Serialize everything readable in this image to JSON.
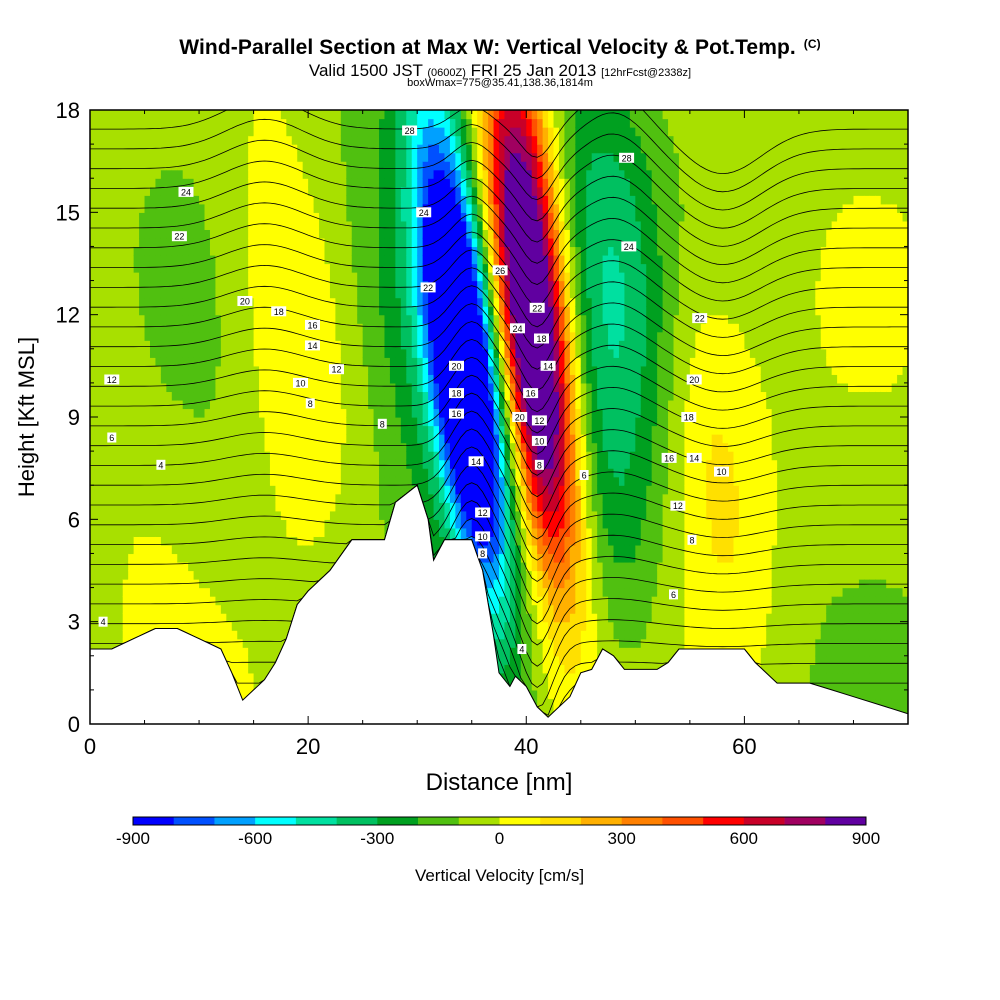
{
  "title": {
    "main": "Wind-Parallel Section at Max W: Vertical Velocity & Pot.Temp.",
    "copyright": "(C)",
    "valid_prefix": "Valid 1500 JST",
    "valid_utc": "(0600Z)",
    "valid_date": "FRI 25 Jan 2013",
    "forecast": "[12hrFcst@2338z]",
    "box_info": "boxWmax=775@35.41,138.36,1814m"
  },
  "chart_data": {
    "type": "heatmap",
    "xlabel": "Distance [nm]",
    "ylabel": "Height [Kft MSL]",
    "xlim": [
      0,
      75
    ],
    "ylim": [
      0,
      18
    ],
    "x_ticks": [
      0,
      20,
      40,
      60
    ],
    "y_ticks": [
      0,
      3,
      6,
      9,
      12,
      15,
      18
    ],
    "colorbar": {
      "label": "Vertical Velocity [cm/s]",
      "tick_labels": [
        "-900",
        "-600",
        "-300",
        "0",
        "300",
        "600",
        "900"
      ],
      "colors": [
        "#0000ff",
        "#0050ff",
        "#00a0ff",
        "#00ffff",
        "#00e0a0",
        "#00c060",
        "#00a020",
        "#50c010",
        "#a8e000",
        "#ffff00",
        "#ffe000",
        "#ffb000",
        "#ff8000",
        "#ff5000",
        "#ff0000",
        "#c80028",
        "#a00060",
        "#6000a0"
      ]
    },
    "terrain_kft": [
      [
        0,
        2.2
      ],
      [
        2,
        2.2
      ],
      [
        4,
        2.5
      ],
      [
        6,
        2.8
      ],
      [
        8,
        2.8
      ],
      [
        10,
        2.5
      ],
      [
        12,
        2.2
      ],
      [
        13,
        1.5
      ],
      [
        14,
        0.7
      ],
      [
        15,
        1.0
      ],
      [
        16,
        1.3
      ],
      [
        17,
        1.8
      ],
      [
        18,
        2.5
      ],
      [
        19,
        3.5
      ],
      [
        20,
        3.9
      ],
      [
        22,
        4.5
      ],
      [
        24,
        5.4
      ],
      [
        27,
        5.4
      ],
      [
        28,
        6.5
      ],
      [
        30,
        7.0
      ],
      [
        31,
        6.0
      ],
      [
        31.5,
        4.8
      ],
      [
        32.5,
        5.4
      ],
      [
        35,
        5.4
      ],
      [
        36,
        4.5
      ],
      [
        37,
        2.6
      ],
      [
        37.5,
        1.5
      ],
      [
        38.5,
        1.1
      ],
      [
        39,
        1.4
      ],
      [
        40,
        1.1
      ],
      [
        41,
        0.5
      ],
      [
        42,
        0.2
      ],
      [
        43,
        0.5
      ],
      [
        44,
        0.8
      ],
      [
        45,
        1.5
      ],
      [
        46,
        1.6
      ],
      [
        47,
        2.2
      ],
      [
        48,
        2.0
      ],
      [
        49,
        1.6
      ],
      [
        52,
        1.6
      ],
      [
        53,
        1.8
      ],
      [
        54,
        2.2
      ],
      [
        57,
        2.2
      ],
      [
        60,
        2.2
      ],
      [
        61,
        1.8
      ],
      [
        63,
        1.2
      ],
      [
        66,
        1.2
      ],
      [
        68,
        1.0
      ],
      [
        70,
        0.8
      ],
      [
        73,
        0.5
      ],
      [
        75,
        0.3
      ]
    ],
    "vertical_velocity_features_cm_s": [
      {
        "x": 35,
        "z": 9.5,
        "w": -900
      },
      {
        "x": 33,
        "z": 13,
        "w": -600
      },
      {
        "x": 41,
        "z": 10,
        "w": 950
      },
      {
        "x": 40,
        "z": 15,
        "w": 650
      },
      {
        "x": 48,
        "z": 14,
        "w": -250
      },
      {
        "x": 47,
        "z": 7,
        "w": -200
      },
      {
        "x": 29,
        "z": 12,
        "w": -250
      },
      {
        "x": 5,
        "z": 5,
        "w": 50
      },
      {
        "x": 18,
        "z": 12,
        "w": 180
      },
      {
        "x": 57,
        "z": 8,
        "w": 200
      }
    ],
    "theta_contour_labels": [
      {
        "text": "4",
        "x": 1.2,
        "z": 3.0
      },
      {
        "text": "4",
        "x": 6.5,
        "z": 7.6
      },
      {
        "text": "6",
        "x": 2.0,
        "z": 8.4
      },
      {
        "text": "12",
        "x": 2.0,
        "z": 10.1
      },
      {
        "text": "22",
        "x": 8.2,
        "z": 14.3
      },
      {
        "text": "24",
        "x": 8.8,
        "z": 15.6
      },
      {
        "text": "20",
        "x": 14.2,
        "z": 12.4
      },
      {
        "text": "18",
        "x": 17.3,
        "z": 12.1
      },
      {
        "text": "16",
        "x": 20.4,
        "z": 11.7
      },
      {
        "text": "14",
        "x": 20.4,
        "z": 11.1
      },
      {
        "text": "10",
        "x": 19.3,
        "z": 10.0
      },
      {
        "text": "8",
        "x": 20.2,
        "z": 9.4
      },
      {
        "text": "12",
        "x": 22.6,
        "z": 10.4
      },
      {
        "text": "8",
        "x": 26.8,
        "z": 8.8
      },
      {
        "text": "28",
        "x": 29.3,
        "z": 17.4
      },
      {
        "text": "24",
        "x": 30.6,
        "z": 15.0
      },
      {
        "text": "22",
        "x": 31.0,
        "z": 12.8
      },
      {
        "text": "20",
        "x": 33.6,
        "z": 10.5
      },
      {
        "text": "18",
        "x": 33.6,
        "z": 9.7
      },
      {
        "text": "16",
        "x": 33.6,
        "z": 9.1
      },
      {
        "text": "14",
        "x": 35.4,
        "z": 7.7
      },
      {
        "text": "12",
        "x": 36.0,
        "z": 6.2
      },
      {
        "text": "10",
        "x": 36.0,
        "z": 5.5
      },
      {
        "text": "8",
        "x": 36.0,
        "z": 5.0
      },
      {
        "text": "26",
        "x": 37.6,
        "z": 13.3
      },
      {
        "text": "24",
        "x": 39.2,
        "z": 11.6
      },
      {
        "text": "22",
        "x": 41.0,
        "z": 12.2
      },
      {
        "text": "18",
        "x": 41.4,
        "z": 11.3
      },
      {
        "text": "14",
        "x": 42.0,
        "z": 10.5
      },
      {
        "text": "20",
        "x": 39.4,
        "z": 9.0
      },
      {
        "text": "16",
        "x": 40.4,
        "z": 9.7
      },
      {
        "text": "12",
        "x": 41.2,
        "z": 8.9
      },
      {
        "text": "10",
        "x": 41.2,
        "z": 8.3
      },
      {
        "text": "8",
        "x": 41.2,
        "z": 7.6
      },
      {
        "text": "4",
        "x": 39.6,
        "z": 2.2
      },
      {
        "text": "6",
        "x": 45.3,
        "z": 7.3
      },
      {
        "text": "28",
        "x": 49.2,
        "z": 16.6
      },
      {
        "text": "24",
        "x": 49.4,
        "z": 14.0
      },
      {
        "text": "22",
        "x": 55.9,
        "z": 11.9
      },
      {
        "text": "20",
        "x": 55.4,
        "z": 10.1
      },
      {
        "text": "18",
        "x": 54.9,
        "z": 9.0
      },
      {
        "text": "16",
        "x": 53.1,
        "z": 7.8
      },
      {
        "text": "14",
        "x": 55.4,
        "z": 7.8
      },
      {
        "text": "10",
        "x": 57.9,
        "z": 7.4
      },
      {
        "text": "12",
        "x": 53.9,
        "z": 6.4
      },
      {
        "text": "8",
        "x": 55.2,
        "z": 5.4
      },
      {
        "text": "6",
        "x": 53.5,
        "z": 3.8
      }
    ]
  }
}
